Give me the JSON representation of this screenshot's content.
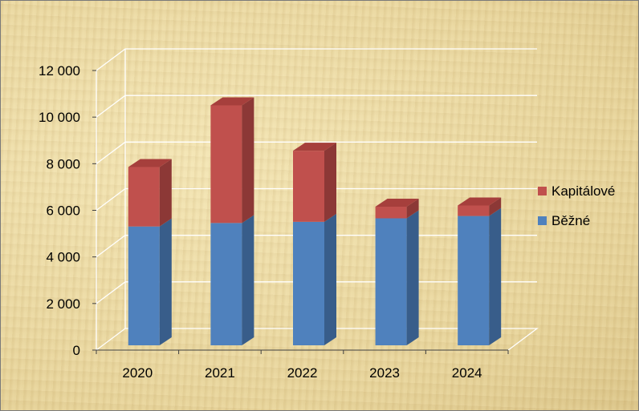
{
  "chart_data": {
    "type": "bar",
    "stacked": true,
    "three_d": true,
    "categories": [
      "2020",
      "2021",
      "2022",
      "2023",
      "2024"
    ],
    "series": [
      {
        "name": "Běžné",
        "values": [
          5100,
          5250,
          5300,
          5450,
          5550
        ],
        "color": "#4f81bd",
        "side_color": "#385d8a",
        "top_color": "#6f9bd2"
      },
      {
        "name": "Kapitálové",
        "values": [
          2550,
          5050,
          3050,
          500,
          450
        ],
        "color": "#c0504d",
        "side_color": "#8c3836",
        "top_color": "#a63f3c"
      }
    ],
    "y_ticks": [
      "0",
      "2 000",
      "4 000",
      "6 000",
      "8 000",
      "10 000",
      "12 000"
    ],
    "ylim": [
      0,
      12000
    ],
    "grid": true,
    "legend_position": "right"
  }
}
